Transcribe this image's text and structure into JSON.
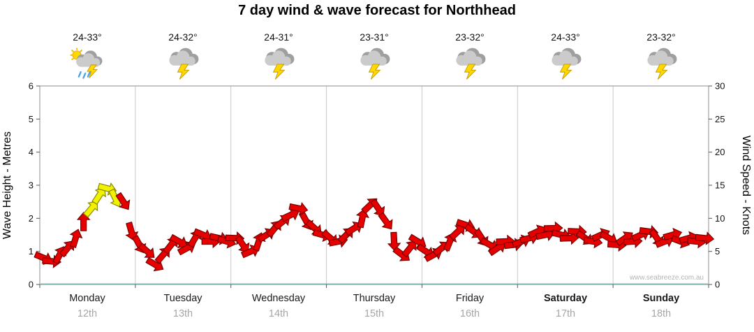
{
  "title": "7 day wind & wave forecast for Northhead",
  "watermark": "www.seabreeze.com.au",
  "days": [
    {
      "name": "Monday",
      "date": "12th",
      "temp": "24-33°",
      "icon": "sun-rain-storm",
      "bold": false
    },
    {
      "name": "Tuesday",
      "date": "13th",
      "temp": "24-32°",
      "icon": "storm",
      "bold": false
    },
    {
      "name": "Wednesday",
      "date": "14th",
      "temp": "24-31°",
      "icon": "storm",
      "bold": false
    },
    {
      "name": "Thursday",
      "date": "15th",
      "temp": "23-31°",
      "icon": "storm",
      "bold": false
    },
    {
      "name": "Friday",
      "date": "16th",
      "temp": "23-32°",
      "icon": "storm",
      "bold": false
    },
    {
      "name": "Saturday",
      "date": "17th",
      "temp": "24-33°",
      "icon": "storm",
      "bold": true
    },
    {
      "name": "Sunday",
      "date": "18th",
      "temp": "23-32°",
      "icon": "storm",
      "bold": true
    }
  ],
  "axes": {
    "left_label": "Wave Height - Metres",
    "left_ticks": [
      0,
      1,
      2,
      3,
      4,
      5,
      6
    ],
    "left_range": [
      0,
      6
    ],
    "right_label": "Wind Speed - Knots",
    "right_ticks": [
      0,
      5,
      10,
      15,
      20,
      25,
      30
    ],
    "right_range": [
      0,
      30
    ]
  },
  "chart_data": {
    "type": "wind-arrows",
    "series_name": "Wind speed (knots) / wave height band",
    "title": "7 day wind & wave forecast for Northhead",
    "points_per_day": 12,
    "categories": [
      "Monday 12th",
      "Tuesday 13th",
      "Wednesday 14th",
      "Thursday 15th",
      "Friday 16th",
      "Saturday 17th",
      "Sunday 18th"
    ],
    "values_knots": [
      4,
      3.5,
      4.5,
      5.5,
      7,
      9.5,
      11.5,
      13.5,
      14.5,
      13,
      12.5,
      8,
      6,
      5,
      3,
      4.5,
      6,
      6.5,
      5.5,
      7,
      7.5,
      6.5,
      7,
      6.5,
      7,
      6,
      5,
      6.5,
      7.5,
      8.5,
      9.5,
      10.5,
      11.5,
      9.5,
      8.5,
      7.5,
      7,
      6.5,
      7.5,
      8.5,
      10,
      12,
      11.5,
      9.5,
      6.5,
      4.5,
      5.5,
      6.5,
      5,
      4.5,
      5.5,
      6.5,
      8,
      9,
      8,
      7,
      6,
      5.5,
      6.5,
      6,
      6.5,
      7,
      8,
      7.5,
      8.5,
      7.5,
      7,
      8,
      7,
      6.5,
      7.5,
      7,
      6,
      7,
      6.5,
      7.5,
      8,
      7,
      6.5,
      7.5,
      6.5,
      7,
      6.5,
      7
    ],
    "wave_equivalent_scale_metres_per_knot": 0.2,
    "yellow_indices": [
      6,
      7,
      8,
      9
    ],
    "ylim_left_metres": [
      0,
      6
    ],
    "ylim_right_knots": [
      0,
      30
    ],
    "grid": "vertical-day-boundaries",
    "colors": {
      "arrow_red": "#e60000",
      "arrow_red_stroke": "#7a0000",
      "arrow_yellow": "#f2f200",
      "arrow_yellow_stroke": "#8a8a00",
      "gridline": "#c9c9c9",
      "border": "#8c8c8c",
      "baseline_teal": "#00a9a9"
    }
  }
}
